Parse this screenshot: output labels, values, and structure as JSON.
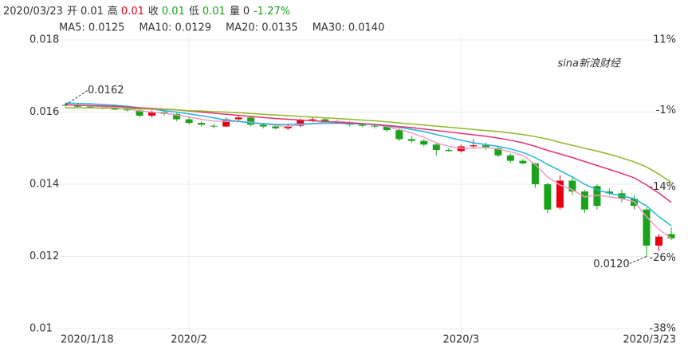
{
  "header": {
    "date": "2020/03/23",
    "items": [
      {
        "label": "开",
        "value": 0.01,
        "color": "#333333"
      },
      {
        "label": "高",
        "value": 0.01,
        "color": "#e60012"
      },
      {
        "label": "收",
        "value": 0.01,
        "color": "#1aa31a"
      },
      {
        "label": "低",
        "value": 0.01,
        "color": "#1aa31a"
      },
      {
        "label": "量",
        "value": 0,
        "color": "#333333"
      }
    ],
    "change": "-1.27%",
    "change_color": "#1aa31a"
  },
  "chart_data": {
    "type": "candlestick",
    "watermark": "sina新浪财经",
    "categories": [
      "2020/1/18",
      null,
      null,
      null,
      null,
      null,
      null,
      null,
      null,
      null,
      "2020/2",
      null,
      null,
      null,
      null,
      null,
      null,
      null,
      null,
      null,
      null,
      null,
      null,
      null,
      null,
      null,
      null,
      null,
      null,
      null,
      null,
      null,
      "2020/3",
      null,
      null,
      null,
      null,
      null,
      null,
      null,
      null,
      null,
      null,
      null,
      null,
      null,
      null,
      null,
      null,
      "2020/3/23"
    ],
    "open": [
      0.0162,
      0.01618,
      0.01615,
      0.01612,
      0.0161,
      0.01607,
      0.01605,
      0.0159,
      0.016,
      0.01595,
      0.0158,
      0.0157,
      0.01562,
      0.0156,
      0.0158,
      0.01585,
      0.01565,
      0.0156,
      0.01555,
      0.01562,
      0.01578,
      0.0158,
      0.01572,
      0.0157,
      0.01565,
      0.01562,
      0.0156,
      0.0155,
      0.01525,
      0.0152,
      0.0151,
      0.01495,
      0.01492,
      0.01505,
      0.01508,
      0.015,
      0.0148,
      0.01465,
      0.01458,
      0.014,
      0.01335,
      0.0141,
      0.0138,
      0.01395,
      0.0138,
      0.01375,
      0.0136,
      0.0133,
      0.0123,
      0.01262
    ],
    "high": [
      0.01625,
      0.01622,
      0.0162,
      0.01618,
      0.01614,
      0.01612,
      0.01608,
      0.01605,
      0.01605,
      0.01598,
      0.01585,
      0.01575,
      0.01568,
      0.01585,
      0.0159,
      0.01588,
      0.0157,
      0.01565,
      0.01568,
      0.01582,
      0.01585,
      0.01583,
      0.01578,
      0.01575,
      0.0157,
      0.01568,
      0.01565,
      0.01555,
      0.01535,
      0.01525,
      0.01515,
      0.015,
      0.0151,
      0.01525,
      0.01515,
      0.01505,
      0.01485,
      0.0147,
      0.0146,
      0.01405,
      0.01425,
      0.01418,
      0.01385,
      0.014,
      0.01388,
      0.01385,
      0.0137,
      0.01335,
      0.01262,
      0.0128
    ],
    "low": [
      0.01615,
      0.01612,
      0.0161,
      0.01608,
      0.01605,
      0.01602,
      0.01585,
      0.01585,
      0.0159,
      0.01575,
      0.01565,
      0.0156,
      0.01555,
      0.01558,
      0.01575,
      0.0156,
      0.01555,
      0.01552,
      0.0155,
      0.01558,
      0.01572,
      0.0157,
      0.01568,
      0.0156,
      0.01558,
      0.01555,
      0.01545,
      0.0152,
      0.01515,
      0.01505,
      0.0148,
      0.0149,
      0.01488,
      0.015,
      0.01495,
      0.01475,
      0.0146,
      0.01455,
      0.0139,
      0.0132,
      0.0133,
      0.0137,
      0.0132,
      0.0133,
      0.0137,
      0.0135,
      0.0133,
      0.012,
      0.01215,
      0.01245
    ],
    "close": [
      0.01618,
      0.01615,
      0.01612,
      0.0161,
      0.01607,
      0.01605,
      0.0159,
      0.016,
      0.01595,
      0.0158,
      0.0157,
      0.01565,
      0.0156,
      0.0158,
      0.01585,
      0.01565,
      0.0156,
      0.01555,
      0.01562,
      0.01578,
      0.0158,
      0.01572,
      0.0157,
      0.01565,
      0.01562,
      0.0156,
      0.0155,
      0.01525,
      0.0152,
      0.0151,
      0.01495,
      0.01492,
      0.01505,
      0.01508,
      0.015,
      0.0148,
      0.01465,
      0.01458,
      0.014,
      0.0133,
      0.0141,
      0.0138,
      0.0133,
      0.0134,
      0.01375,
      0.0136,
      0.0134,
      0.0123,
      0.01255,
      0.0125
    ],
    "up_color": "#e60012",
    "down_color": "#1aa31a",
    "series": [
      {
        "name": "MA5: 0.0125",
        "color": "#f09cc4",
        "values": [
          0.0162,
          0.01619,
          0.01617,
          0.01615,
          0.01612,
          0.01609,
          0.01603,
          0.016,
          0.01597,
          0.01592,
          0.01586,
          0.0158,
          0.01575,
          0.01574,
          0.01574,
          0.01572,
          0.01568,
          0.01563,
          0.0156,
          0.01565,
          0.01568,
          0.01572,
          0.01574,
          0.01572,
          0.01568,
          0.01565,
          0.0156,
          0.01552,
          0.01542,
          0.0153,
          0.01515,
          0.01505,
          0.015,
          0.015,
          0.01502,
          0.01498,
          0.0149,
          0.0148,
          0.01455,
          0.0142,
          0.01398,
          0.01385,
          0.01365,
          0.0137,
          0.01365,
          0.0136,
          0.01352,
          0.0131,
          0.01275,
          0.0125
        ]
      },
      {
        "name": "MA10: 0.0129",
        "color": "#1eb4dc",
        "values": [
          0.01625,
          0.01624,
          0.01623,
          0.01621,
          0.01619,
          0.01616,
          0.01612,
          0.01608,
          0.01604,
          0.016,
          0.01595,
          0.0159,
          0.01584,
          0.01578,
          0.01574,
          0.0157,
          0.01568,
          0.01566,
          0.01566,
          0.01567,
          0.01568,
          0.01569,
          0.01569,
          0.01568,
          0.01567,
          0.01565,
          0.01562,
          0.01558,
          0.01552,
          0.01546,
          0.01538,
          0.0153,
          0.01522,
          0.01515,
          0.0151,
          0.01505,
          0.01498,
          0.01488,
          0.01474,
          0.01455,
          0.01438,
          0.0142,
          0.014,
          0.01385,
          0.01375,
          0.01368,
          0.0136,
          0.0134,
          0.0131,
          0.01285
        ]
      },
      {
        "name": "MA20: 0.0135",
        "color": "#e2336e",
        "values": [
          0.0162,
          0.01619,
          0.01618,
          0.01617,
          0.01616,
          0.01614,
          0.01612,
          0.0161,
          0.01608,
          0.01606,
          0.01603,
          0.016,
          0.01597,
          0.01594,
          0.01591,
          0.01588,
          0.01585,
          0.01582,
          0.0158,
          0.01578,
          0.01576,
          0.01574,
          0.01572,
          0.0157,
          0.01568,
          0.01566,
          0.01563,
          0.0156,
          0.01557,
          0.01553,
          0.01549,
          0.01545,
          0.01541,
          0.01537,
          0.01533,
          0.01528,
          0.01522,
          0.01515,
          0.01505,
          0.01494,
          0.01484,
          0.01474,
          0.01463,
          0.01452,
          0.01441,
          0.0143,
          0.01418,
          0.01398,
          0.01375,
          0.0135
        ]
      },
      {
        "name": "MA30: 0.0140",
        "color": "#8fb82a",
        "values": [
          0.01612,
          0.01612,
          0.01612,
          0.01611,
          0.01611,
          0.0161,
          0.01609,
          0.01608,
          0.01607,
          0.01606,
          0.01604,
          0.01603,
          0.01601,
          0.016,
          0.01598,
          0.01596,
          0.01594,
          0.01592,
          0.0159,
          0.01588,
          0.01586,
          0.01584,
          0.01582,
          0.0158,
          0.01578,
          0.01576,
          0.01573,
          0.0157,
          0.01567,
          0.01564,
          0.01561,
          0.01558,
          0.01555,
          0.01552,
          0.01549,
          0.01546,
          0.01542,
          0.01538,
          0.01532,
          0.01525,
          0.01516,
          0.01508,
          0.015,
          0.01492,
          0.01483,
          0.01473,
          0.01462,
          0.01448,
          0.01428,
          0.01405
        ]
      }
    ],
    "annotations": [
      {
        "text": "0.0162",
        "value": 0.0162,
        "x": 0
      },
      {
        "text": "0.0120",
        "value": 0.012,
        "x": 47
      }
    ],
    "ylim": [
      0.01,
      0.018
    ],
    "yticks": [
      {
        "value": 0.018,
        "label": "0.018"
      },
      {
        "value": 0.016,
        "label": "0.016"
      },
      {
        "value": 0.014,
        "label": "0.014"
      },
      {
        "value": 0.012,
        "label": "0.012"
      },
      0.01
    ],
    "y2lim": [
      -38,
      11
    ],
    "y2ticks": [
      {
        "value": 11,
        "label": "11%"
      },
      {
        "value": -1,
        "label": "-1%"
      },
      {
        "value": -14,
        "label": "-14%"
      },
      {
        "value": -26,
        "label": "-26%"
      },
      {
        "value": -38,
        "label": "-38%"
      }
    ],
    "grid": true
  }
}
